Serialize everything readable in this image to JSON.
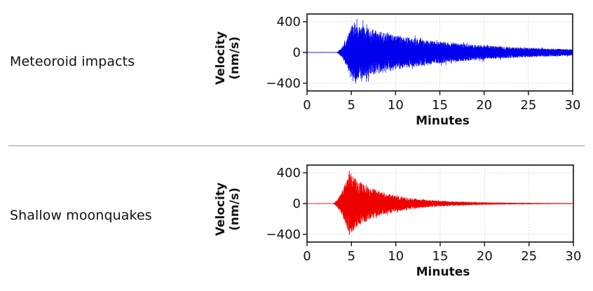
{
  "labels": {
    "top": "Meteoroid impacts",
    "bottom": "Shallow moonquakes"
  },
  "chart_data": [
    {
      "type": "line",
      "title": "Meteoroid impacts",
      "series": [
        {
          "name": "Meteoroid impacts",
          "color": "#0000ee",
          "onset_min": 3.3,
          "peak_min": 5.2,
          "peak_amplitude": 400,
          "end_amplitude": 40,
          "end_min": 30
        }
      ],
      "xlabel": "Minutes",
      "ylabel": [
        "Velocity",
        "(nm/s)"
      ],
      "xlim": [
        0,
        30
      ],
      "ylim": [
        -500,
        500
      ],
      "xticks": [
        0,
        5,
        10,
        15,
        20,
        25,
        30
      ],
      "xtick_labels": [
        "0",
        "5",
        "10",
        "15",
        "20",
        "25",
        "30"
      ],
      "yticks": [
        400,
        0,
        -400
      ],
      "ytick_labels": [
        "400",
        "0",
        "−400"
      ],
      "grid": true
    },
    {
      "type": "line",
      "title": "Shallow moonquakes",
      "series": [
        {
          "name": "Shallow moonquakes",
          "color": "#ee0000",
          "onset_min": 2.9,
          "peak_min": 4.8,
          "peak_amplitude": 420,
          "end_amplitude": 2,
          "end_min": 30
        }
      ],
      "xlabel": "Minutes",
      "ylabel": [
        "Velocity",
        "(nm/s)"
      ],
      "xlim": [
        0,
        30
      ],
      "ylim": [
        -500,
        500
      ],
      "xticks": [
        0,
        5,
        10,
        15,
        20,
        25,
        30
      ],
      "xtick_labels": [
        "0",
        "5",
        "10",
        "15",
        "20",
        "25",
        "30"
      ],
      "yticks": [
        400,
        0,
        -400
      ],
      "ytick_labels": [
        "400",
        "0",
        "−400"
      ],
      "grid": true
    }
  ]
}
